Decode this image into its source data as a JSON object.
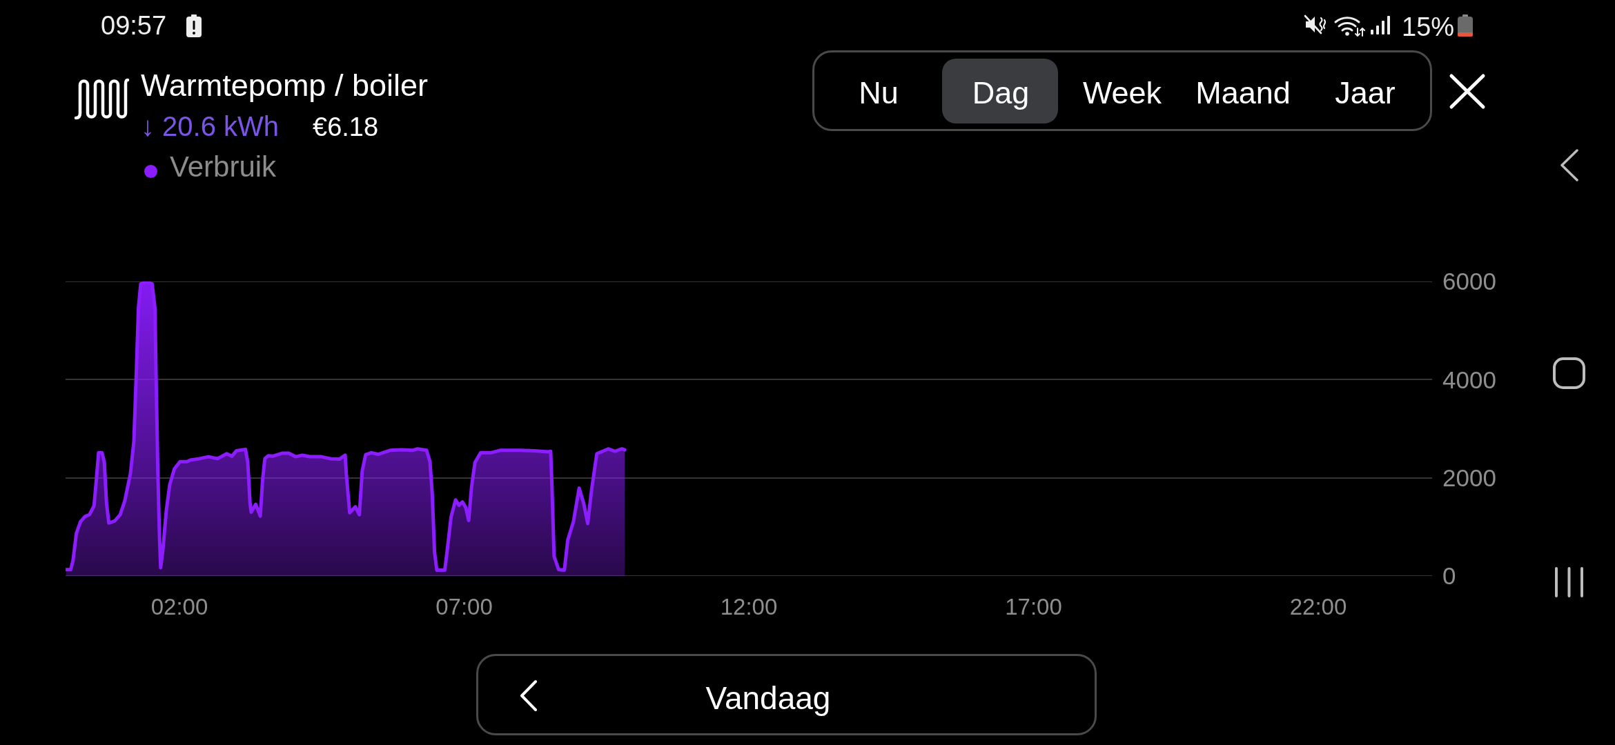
{
  "chart_data": {
    "type": "area",
    "title": "Warmtepomp / boiler",
    "subtitle": "↓ 20.6 kWh",
    "annotations": [
      "€6.18",
      "Nu",
      "Dag",
      "Week",
      "Maand",
      "Jaar",
      "Vandaag",
      "09:57",
      "15%"
    ],
    "x": [
      0.01,
      0.09,
      0.13,
      0.19,
      0.26,
      0.34,
      0.42,
      0.5,
      0.54,
      0.58,
      0.64,
      0.68,
      0.72,
      0.76,
      0.86,
      0.96,
      1.04,
      1.14,
      1.2,
      1.24,
      1.28,
      1.32,
      1.42,
      1.52,
      1.57,
      1.59,
      1.62,
      1.65,
      1.67,
      1.71,
      1.77,
      1.83,
      1.91,
      2.01,
      2.13,
      2.19,
      2.35,
      2.51,
      2.67,
      2.83,
      2.92,
      3.0,
      3.16,
      3.2,
      3.24,
      3.26,
      3.34,
      3.42,
      3.46,
      3.5,
      3.56,
      3.64,
      3.8,
      3.92,
      4.04,
      4.16,
      4.29,
      4.49,
      4.65,
      4.81,
      4.91,
      4.93,
      4.99,
      5.09,
      5.16,
      5.21,
      5.27,
      5.37,
      5.49,
      5.7,
      5.9,
      6.1,
      6.18,
      6.34,
      6.4,
      6.44,
      6.48,
      6.52,
      6.66,
      6.7,
      6.77,
      6.85,
      6.91,
      6.97,
      7.03,
      7.08,
      7.13,
      7.19,
      7.29,
      7.47,
      7.63,
      7.87,
      8.0,
      8.24,
      8.48,
      8.52,
      8.54,
      8.58,
      8.66,
      8.76,
      8.82,
      8.92,
      9.02,
      9.1,
      9.17,
      9.24,
      9.33,
      9.41,
      9.53,
      9.65,
      9.77,
      9.82
    ],
    "series": [
      {
        "name": "Verbruik",
        "color": "#8b1dff",
        "values": [
          130,
          130,
          310,
          870,
          1100,
          1210,
          1250,
          1430,
          1950,
          2510,
          2510,
          2320,
          1480,
          1080,
          1120,
          1250,
          1530,
          2090,
          2750,
          4060,
          5460,
          5950,
          5990,
          5950,
          5460,
          4060,
          2180,
          780,
          170,
          540,
          1340,
          1860,
          2180,
          2330,
          2330,
          2360,
          2390,
          2430,
          2390,
          2490,
          2440,
          2550,
          2580,
          2320,
          1480,
          1300,
          1460,
          1220,
          1950,
          2390,
          2450,
          2440,
          2500,
          2500,
          2430,
          2460,
          2430,
          2430,
          2390,
          2380,
          2460,
          2090,
          1290,
          1410,
          1250,
          2140,
          2470,
          2510,
          2480,
          2560,
          2570,
          2560,
          2590,
          2560,
          2330,
          1670,
          490,
          120,
          120,
          490,
          1200,
          1550,
          1440,
          1510,
          1390,
          1130,
          1810,
          2310,
          2510,
          2510,
          2560,
          2560,
          2560,
          2550,
          2530,
          2540,
          1910,
          400,
          130,
          120,
          730,
          1110,
          1790,
          1480,
          1070,
          1770,
          2490,
          2530,
          2590,
          2540,
          2590,
          2570
        ]
      }
    ],
    "xlim": [
      0,
      24
    ],
    "xticks": [
      {
        "value": 2,
        "label": "02:00"
      },
      {
        "value": 7,
        "label": "07:00"
      },
      {
        "value": 12,
        "label": "12:00"
      },
      {
        "value": 17,
        "label": "17:00"
      },
      {
        "value": 22,
        "label": "22:00"
      }
    ],
    "ylim": [
      0,
      6000
    ],
    "yticks": [
      0,
      2000,
      4000,
      6000
    ],
    "grid": "y",
    "legend": "top left",
    "line_style": "solid"
  }
}
